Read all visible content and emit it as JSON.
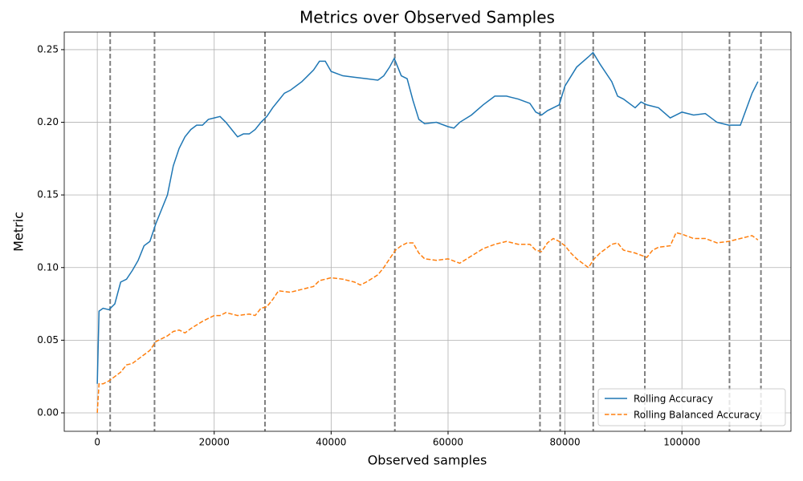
{
  "chart_data": {
    "type": "line",
    "title": "Metrics over Observed Samples",
    "x_label": "Observed samples",
    "y_label": "Metric",
    "xlim": [
      -5650,
      118650
    ],
    "ylim": [
      -0.0127,
      0.2621
    ],
    "xticks": [
      0,
      20000,
      40000,
      60000,
      80000,
      100000
    ],
    "yticks": [
      {
        "value": 0,
        "label": "0.00"
      },
      0.05,
      {
        "value": 0.1,
        "label": "0.10"
      },
      0.15,
      {
        "value": 0.2,
        "label": "0.20"
      },
      0.25
    ],
    "grid": true,
    "legend": "lower right",
    "vlines": [
      2207,
      9793,
      28690,
      50897,
      75724,
      79172,
      84828,
      93655,
      108138,
      113517
    ],
    "vline_color": "#808080",
    "series": [
      {
        "name": "Rolling Accuracy",
        "color": "#1f77b4",
        "style": "solid",
        "x": [
          0,
          300,
          1000,
          2000,
          3000,
          4000,
          5000,
          6000,
          7000,
          8000,
          9000,
          10000,
          11000,
          12000,
          13000,
          14000,
          15000,
          16000,
          17000,
          18000,
          19000,
          20000,
          21000,
          22000,
          23000,
          24000,
          25000,
          26000,
          27000,
          28000,
          29000,
          30000,
          31000,
          32000,
          33000,
          34000,
          35000,
          36000,
          37000,
          38000,
          39000,
          40000,
          42000,
          44000,
          46000,
          48000,
          49000,
          50000,
          50800,
          52000,
          53000,
          54000,
          55000,
          56000,
          58000,
          60000,
          61000,
          62000,
          64000,
          66000,
          68000,
          70000,
          72000,
          74000,
          75000,
          76000,
          77000,
          78000,
          79000,
          80000,
          82000,
          84000,
          84800,
          86000,
          88000,
          89000,
          90000,
          92000,
          93000,
          94000,
          96000,
          98000,
          100000,
          102000,
          104000,
          106000,
          108000,
          110000,
          112000,
          113000
        ],
        "values": [
          0.02,
          0.07,
          0.072,
          0.071,
          0.075,
          0.09,
          0.092,
          0.098,
          0.105,
          0.115,
          0.118,
          0.13,
          0.14,
          0.15,
          0.17,
          0.182,
          0.19,
          0.195,
          0.198,
          0.198,
          0.202,
          0.203,
          0.204,
          0.2,
          0.195,
          0.19,
          0.192,
          0.192,
          0.195,
          0.2,
          0.204,
          0.21,
          0.215,
          0.22,
          0.222,
          0.225,
          0.228,
          0.232,
          0.236,
          0.242,
          0.242,
          0.235,
          0.232,
          0.231,
          0.23,
          0.229,
          0.232,
          0.238,
          0.244,
          0.232,
          0.23,
          0.215,
          0.202,
          0.199,
          0.2,
          0.197,
          0.196,
          0.2,
          0.205,
          0.212,
          0.218,
          0.218,
          0.216,
          0.213,
          0.207,
          0.205,
          0.208,
          0.21,
          0.212,
          0.225,
          0.238,
          0.245,
          0.248,
          0.24,
          0.228,
          0.218,
          0.216,
          0.21,
          0.214,
          0.212,
          0.21,
          0.203,
          0.207,
          0.205,
          0.206,
          0.2,
          0.198,
          0.198,
          0.22,
          0.228
        ]
      },
      {
        "name": "Rolling Balanced Accuracy",
        "color": "#ff7f0e",
        "style": "dashed",
        "x": [
          0,
          300,
          1000,
          2000,
          3000,
          4000,
          5000,
          6000,
          7000,
          8000,
          9000,
          10000,
          12000,
          13000,
          14000,
          15000,
          16000,
          18000,
          20000,
          21000,
          22000,
          24000,
          26000,
          27000,
          28000,
          29000,
          30000,
          31000,
          33000,
          35000,
          37000,
          38000,
          40000,
          42000,
          44000,
          45000,
          46000,
          48000,
          49000,
          50000,
          51000,
          52000,
          53000,
          54000,
          55000,
          56000,
          58000,
          60000,
          62000,
          64000,
          66000,
          68000,
          70000,
          72000,
          74000,
          75000,
          76000,
          77000,
          78000,
          79000,
          80000,
          81000,
          82000,
          83000,
          84000,
          85000,
          86000,
          87000,
          88000,
          89000,
          90000,
          92000,
          94000,
          95000,
          96000,
          98000,
          99000,
          100000,
          102000,
          104000,
          106000,
          108000,
          110000,
          112000,
          113000
        ],
        "values": [
          0,
          0.02,
          0.02,
          0.022,
          0.025,
          0.028,
          0.033,
          0.034,
          0.037,
          0.04,
          0.043,
          0.049,
          0.053,
          0.056,
          0.057,
          0.055,
          0.058,
          0.063,
          0.067,
          0.067,
          0.069,
          0.067,
          0.068,
          0.067,
          0.072,
          0.073,
          0.078,
          0.084,
          0.083,
          0.085,
          0.087,
          0.091,
          0.093,
          0.092,
          0.09,
          0.088,
          0.09,
          0.095,
          0.1,
          0.106,
          0.112,
          0.115,
          0.117,
          0.117,
          0.11,
          0.106,
          0.105,
          0.106,
          0.103,
          0.108,
          0.113,
          0.116,
          0.118,
          0.116,
          0.116,
          0.112,
          0.111,
          0.117,
          0.12,
          0.118,
          0.115,
          0.11,
          0.106,
          0.103,
          0.1,
          0.106,
          0.11,
          0.113,
          0.116,
          0.117,
          0.112,
          0.11,
          0.107,
          0.112,
          0.114,
          0.115,
          0.124,
          0.123,
          0.12,
          0.12,
          0.117,
          0.118,
          0.12,
          0.122,
          0.119
        ]
      }
    ]
  }
}
